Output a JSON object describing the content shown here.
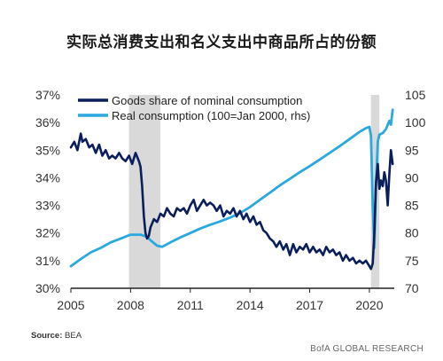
{
  "title": "实际总消费支出和名义支出中商品所占的份额",
  "source_label": "Source:",
  "source_value": "BEA",
  "credit": "BofA GLOBAL RESEARCH",
  "colors": {
    "goods": "#0a1e5c",
    "real": "#2aa8e0",
    "recession": "#d9d9d9",
    "axis": "#222222"
  },
  "chart_data": {
    "type": "line",
    "x_ticks": [
      "2005",
      "2008",
      "2011",
      "2014",
      "2017",
      "2020"
    ],
    "xlim": [
      2005,
      2021.25
    ],
    "y_left": {
      "ticks": [
        "30%",
        "31%",
        "32%",
        "33%",
        "34%",
        "35%",
        "36%",
        "37%"
      ],
      "ylim": [
        30,
        37
      ]
    },
    "y_right": {
      "ticks": [
        "70",
        "75",
        "80",
        "85",
        "90",
        "95",
        "100",
        "105"
      ],
      "ylim": [
        70,
        105
      ]
    },
    "recessions": [
      [
        2007.92,
        2009.5
      ],
      [
        2020.08,
        2020.5
      ]
    ],
    "grid": false,
    "legend_position": "top",
    "series": [
      {
        "name": "Goods share of nominal consumption",
        "axis": "left",
        "x": [
          2005.0,
          2005.17,
          2005.33,
          2005.5,
          2005.58,
          2005.75,
          2005.92,
          2006.08,
          2006.25,
          2006.42,
          2006.58,
          2006.75,
          2006.92,
          2007.08,
          2007.25,
          2007.42,
          2007.58,
          2007.75,
          2007.92,
          2008.08,
          2008.25,
          2008.42,
          2008.5,
          2008.58,
          2008.67,
          2008.75,
          2008.83,
          2008.92,
          2009.0,
          2009.17,
          2009.33,
          2009.5,
          2009.67,
          2009.83,
          2010.0,
          2010.17,
          2010.33,
          2010.5,
          2010.67,
          2010.83,
          2011.0,
          2011.17,
          2011.33,
          2011.5,
          2011.67,
          2011.83,
          2012.0,
          2012.17,
          2012.33,
          2012.5,
          2012.67,
          2012.83,
          2013.0,
          2013.17,
          2013.33,
          2013.5,
          2013.67,
          2013.83,
          2014.0,
          2014.17,
          2014.33,
          2014.5,
          2014.67,
          2014.83,
          2015.0,
          2015.17,
          2015.33,
          2015.5,
          2015.67,
          2015.83,
          2016.0,
          2016.17,
          2016.33,
          2016.5,
          2016.67,
          2016.83,
          2017.0,
          2017.17,
          2017.33,
          2017.5,
          2017.67,
          2017.83,
          2018.0,
          2018.17,
          2018.33,
          2018.5,
          2018.67,
          2018.83,
          2019.0,
          2019.17,
          2019.33,
          2019.5,
          2019.67,
          2019.83,
          2020.0,
          2020.08,
          2020.17,
          2020.25,
          2020.33,
          2020.42,
          2020.5,
          2020.58,
          2020.67,
          2020.75,
          2020.83,
          2020.92,
          2021.0,
          2021.08,
          2021.17
        ],
        "y": [
          35.1,
          35.3,
          35.0,
          35.6,
          35.3,
          35.4,
          35.1,
          35.2,
          34.9,
          35.2,
          34.8,
          35.0,
          34.7,
          34.8,
          34.7,
          34.9,
          34.7,
          34.6,
          34.8,
          34.5,
          34.9,
          34.6,
          34.4,
          33.7,
          32.6,
          32.0,
          31.8,
          31.9,
          32.2,
          32.5,
          32.4,
          32.7,
          32.6,
          32.9,
          32.7,
          32.6,
          32.9,
          32.8,
          32.9,
          32.7,
          33.0,
          33.2,
          32.8,
          33.0,
          33.2,
          33.0,
          33.1,
          33.0,
          32.8,
          33.0,
          32.6,
          32.8,
          32.7,
          32.9,
          32.6,
          32.8,
          32.5,
          32.7,
          32.4,
          32.6,
          32.3,
          32.4,
          32.1,
          32.0,
          31.8,
          31.7,
          31.5,
          31.7,
          31.4,
          31.6,
          31.2,
          31.6,
          31.3,
          31.5,
          31.4,
          31.6,
          31.3,
          31.5,
          31.3,
          31.4,
          31.2,
          31.5,
          31.3,
          31.4,
          31.2,
          31.3,
          31.0,
          31.2,
          31.0,
          31.1,
          30.9,
          31.0,
          30.9,
          31.0,
          30.8,
          30.7,
          30.9,
          32.0,
          33.8,
          34.5,
          33.6,
          33.9,
          33.7,
          34.2,
          33.9,
          33.0,
          34.1,
          35.0,
          34.5
        ]
      },
      {
        "name": "Real consumption (100=Jan 2000, rhs)",
        "axis": "right",
        "x": [
          2005.0,
          2005.5,
          2006.0,
          2006.5,
          2007.0,
          2007.5,
          2008.0,
          2008.5,
          2008.83,
          2009.0,
          2009.33,
          2009.58,
          2010.0,
          2010.5,
          2011.0,
          2011.5,
          2012.0,
          2012.5,
          2013.0,
          2013.5,
          2014.0,
          2014.5,
          2015.0,
          2015.5,
          2016.0,
          2016.5,
          2017.0,
          2017.5,
          2018.0,
          2018.5,
          2019.0,
          2019.5,
          2019.83,
          2020.0,
          2020.08,
          2020.17,
          2020.25,
          2020.33,
          2020.42,
          2020.5,
          2020.67,
          2020.83,
          2021.0,
          2021.08,
          2021.17
        ],
        "y": [
          74.0,
          75.3,
          76.5,
          77.3,
          78.3,
          79.0,
          79.7,
          79.7,
          79.3,
          78.7,
          77.7,
          77.5,
          78.3,
          79.2,
          80.0,
          80.8,
          81.5,
          82.1,
          82.8,
          83.6,
          84.7,
          86.0,
          87.3,
          88.6,
          89.8,
          91.0,
          92.1,
          93.3,
          94.5,
          95.7,
          97.0,
          98.3,
          99.0,
          99.2,
          97.6,
          85.0,
          77.3,
          88.3,
          96.5,
          97.8,
          98.1,
          98.8,
          100.3,
          99.6,
          102.3
        ]
      }
    ]
  }
}
